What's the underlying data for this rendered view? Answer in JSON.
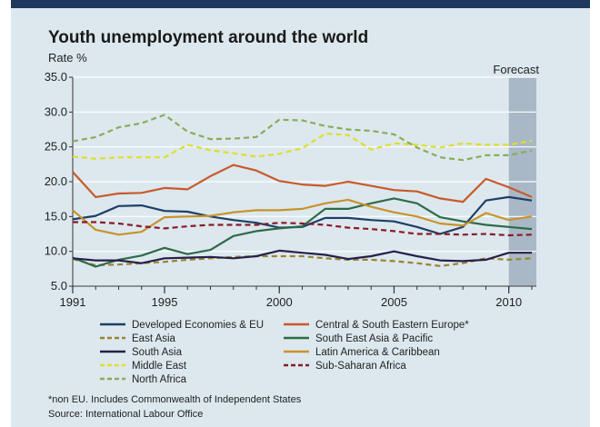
{
  "chart_data": {
    "type": "line",
    "title": "Youth unemployment around the world",
    "ylabel": "Rate %",
    "xlabel": "",
    "x": [
      1991,
      1992,
      1993,
      1994,
      1995,
      1996,
      1997,
      1998,
      1999,
      2000,
      2001,
      2002,
      2003,
      2004,
      2005,
      2006,
      2007,
      2008,
      2009,
      2010,
      2011
    ],
    "xticks": [
      "1991",
      "1995",
      "2000",
      "2005",
      "2010"
    ],
    "yticks": [
      "5.0",
      "10.0",
      "15.0",
      "20.0",
      "25.0",
      "30.0",
      "35.0"
    ],
    "xlim": [
      1991,
      2011.2
    ],
    "ylim": [
      5,
      35
    ],
    "grid": true,
    "annotation": "Forecast",
    "forecast_start": 2010,
    "legend_position": "bottom",
    "series": [
      {
        "name": "Developed Economies & EU",
        "color": "#1d3f66",
        "dash": "solid",
        "values": [
          14.6,
          15.1,
          16.5,
          16.6,
          15.8,
          15.7,
          15.0,
          14.5,
          14.1,
          13.4,
          13.5,
          14.8,
          14.8,
          14.5,
          14.3,
          13.5,
          12.5,
          13.5,
          17.3,
          17.8,
          17.3
        ]
      },
      {
        "name": "Central & South Eastern Europe*",
        "color": "#c9592a",
        "dash": "solid",
        "values": [
          21.4,
          17.8,
          18.3,
          18.4,
          19.1,
          18.9,
          20.8,
          22.4,
          21.6,
          20.1,
          19.6,
          19.4,
          20.0,
          19.4,
          18.8,
          18.6,
          17.6,
          17.1,
          20.4,
          19.2,
          17.8
        ]
      },
      {
        "name": "East Asia",
        "color": "#9a8430",
        "dash": "dash",
        "values": [
          8.9,
          8.0,
          8.1,
          8.3,
          8.5,
          8.8,
          9.0,
          9.2,
          9.3,
          9.3,
          9.3,
          9.0,
          8.8,
          8.8,
          8.6,
          8.3,
          7.9,
          8.3,
          9.0,
          8.8,
          9.0
        ]
      },
      {
        "name": "South East Asia & Pacific",
        "color": "#2e6a48",
        "dash": "solid",
        "values": [
          9.1,
          7.8,
          8.8,
          9.4,
          10.5,
          9.6,
          10.2,
          12.2,
          12.9,
          13.3,
          13.6,
          16.1,
          16.1,
          16.9,
          17.6,
          16.9,
          14.9,
          14.3,
          13.8,
          13.5,
          13.2
        ]
      },
      {
        "name": "South Asia",
        "color": "#26204a",
        "dash": "solid",
        "values": [
          9.0,
          8.7,
          8.7,
          8.3,
          9.0,
          9.1,
          9.2,
          9.0,
          9.3,
          10.1,
          9.8,
          9.5,
          8.9,
          9.3,
          10.0,
          9.3,
          8.7,
          8.6,
          8.8,
          9.8,
          9.8
        ]
      },
      {
        "name": "Latin America & Caribbean",
        "color": "#c9922b",
        "dash": "solid",
        "values": [
          15.9,
          13.1,
          12.4,
          12.8,
          14.9,
          15.0,
          15.1,
          15.6,
          15.9,
          15.9,
          16.1,
          16.9,
          17.4,
          16.4,
          15.6,
          15.0,
          14.0,
          13.7,
          15.5,
          14.5,
          15.0
        ]
      },
      {
        "name": "Middle East",
        "color": "#e0de2a",
        "dash": "dash",
        "values": [
          23.6,
          23.3,
          23.5,
          23.5,
          23.5,
          25.3,
          24.5,
          24.1,
          23.6,
          24.0,
          24.8,
          26.9,
          26.7,
          24.6,
          25.5,
          25.3,
          24.9,
          25.5,
          25.3,
          25.3,
          25.9
        ]
      },
      {
        "name": "Sub-Saharan Africa",
        "color": "#8a1a2a",
        "dash": "dash",
        "values": [
          14.2,
          14.2,
          14.0,
          13.6,
          13.3,
          13.6,
          13.8,
          13.8,
          13.8,
          14.1,
          14.0,
          13.8,
          13.4,
          13.2,
          12.9,
          12.5,
          12.5,
          12.4,
          12.5,
          12.3,
          12.4
        ]
      },
      {
        "name": "North Africa",
        "color": "#8bab5a",
        "dash": "dash",
        "values": [
          25.8,
          26.4,
          27.8,
          28.4,
          29.6,
          27.2,
          26.1,
          26.2,
          26.4,
          28.9,
          28.8,
          28.0,
          27.5,
          27.3,
          26.8,
          24.9,
          23.5,
          23.1,
          23.8,
          23.8,
          24.5
        ]
      }
    ],
    "footnote": "*non EU. Includes Commonwealth of Independent States",
    "source": "Source: International Labour Office"
  },
  "colors": {
    "background": "#dce8ee",
    "top_bar": "#1f3a5c",
    "forecast_band": "#a9b8c6",
    "grid": "#ffffff"
  }
}
